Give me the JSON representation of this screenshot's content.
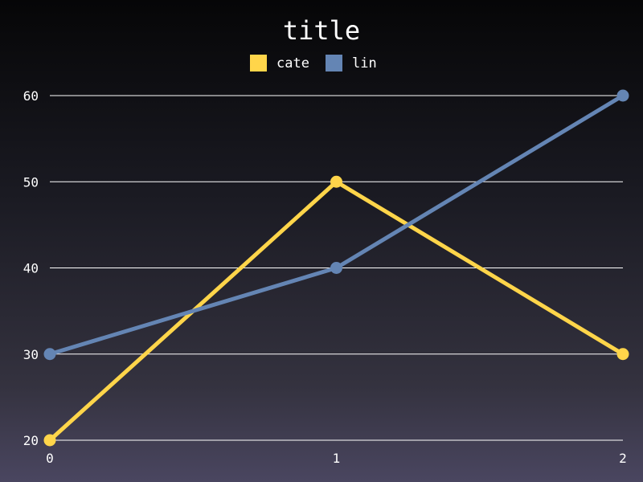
{
  "chart_data": {
    "type": "line",
    "title": "title",
    "xlabel": "",
    "ylabel": "",
    "x": [
      0,
      1,
      2
    ],
    "xticks": [
      "0",
      "1",
      "2"
    ],
    "yticks": [
      "20",
      "30",
      "40",
      "50",
      "60"
    ],
    "ylim": [
      20,
      60
    ],
    "grid": "horizontal",
    "legend_position": "top-center",
    "series": [
      {
        "name": "cate",
        "color": "#ffd54a",
        "values": [
          20,
          50,
          30
        ]
      },
      {
        "name": "lin",
        "color": "#6485b4",
        "values": [
          30,
          40,
          60
        ]
      }
    ]
  }
}
